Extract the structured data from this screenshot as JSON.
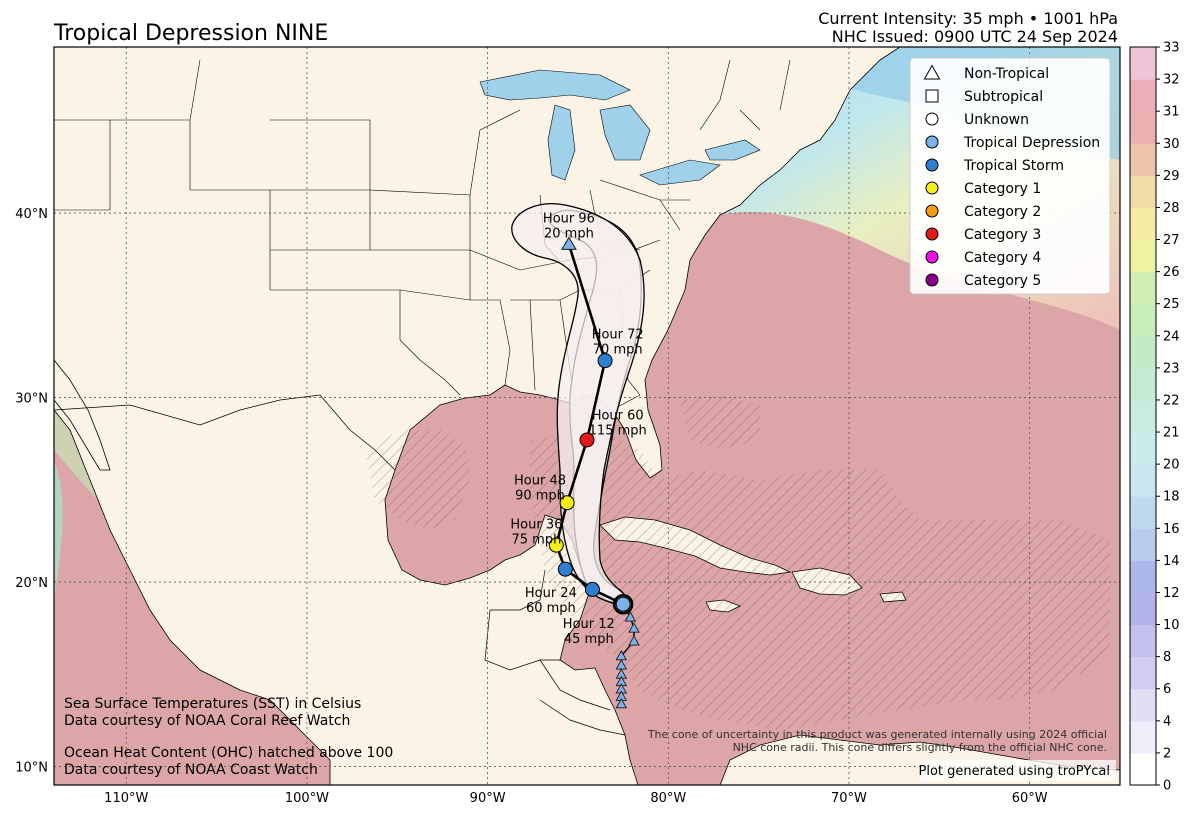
{
  "header": {
    "title": "Tropical Depression NINE",
    "intensity": "Current Intensity: 35 mph • 1001 hPa",
    "issued": "NHC Issued: 0900 UTC 24 Sep 2024"
  },
  "map": {
    "lon_range": [
      -114,
      -55
    ],
    "lat_range": [
      9,
      49
    ],
    "lon_ticks": [
      {
        "lon": -110,
        "label": "110°W"
      },
      {
        "lon": -100,
        "label": "100°W"
      },
      {
        "lon": -90,
        "label": "90°W"
      },
      {
        "lon": -80,
        "label": "80°W"
      },
      {
        "lon": -70,
        "label": "70°W"
      },
      {
        "lon": -60,
        "label": "60°W"
      }
    ],
    "lat_ticks": [
      {
        "lat": 10,
        "label": "10°N"
      },
      {
        "lat": 20,
        "label": "20°N"
      },
      {
        "lat": 30,
        "label": "30°N"
      },
      {
        "lat": 40,
        "label": "40°N"
      }
    ],
    "gridlines": true,
    "colors": {
      "land": "#faf3e6",
      "ocean_warm": "#dba3a6",
      "ocean_cool": "#9fd4ea",
      "cone": "#f6efef"
    }
  },
  "track": {
    "points": [
      {
        "lon": -82.5,
        "lat": 18.8,
        "type": "Tropical Depression",
        "hour": 0
      },
      {
        "lon": -84.2,
        "lat": 19.6,
        "type": "Tropical Storm",
        "hour": 12
      },
      {
        "lon": -85.7,
        "lat": 20.7,
        "type": "Tropical Storm",
        "hour": 24
      },
      {
        "lon": -86.2,
        "lat": 22.0,
        "type": "Category 1",
        "hour": 36
      },
      {
        "lon": -85.6,
        "lat": 24.3,
        "type": "Category 1",
        "hour": 48
      },
      {
        "lon": -84.5,
        "lat": 27.7,
        "type": "Category 3",
        "hour": 60
      },
      {
        "lon": -83.5,
        "lat": 32.0,
        "type": "Tropical Storm",
        "hour": 72
      },
      {
        "lon": -85.5,
        "lat": 38.3,
        "type": "Non-Tropical",
        "hour": 96
      }
    ],
    "history": [
      {
        "lon": -82.1,
        "lat": 18.1
      },
      {
        "lon": -81.9,
        "lat": 17.5
      },
      {
        "lon": -81.9,
        "lat": 16.8
      },
      {
        "lon": -82.6,
        "lat": 16.0
      },
      {
        "lon": -82.6,
        "lat": 15.5
      },
      {
        "lon": -82.6,
        "lat": 15.0
      },
      {
        "lon": -82.6,
        "lat": 14.6
      },
      {
        "lon": -82.6,
        "lat": 14.2
      },
      {
        "lon": -82.6,
        "lat": 13.8
      },
      {
        "lon": -82.6,
        "lat": 13.4
      }
    ]
  },
  "labels": [
    {
      "text": "Hour 96",
      "sub": "20 mph",
      "lon": -85.5,
      "lat": 39.5
    },
    {
      "text": "Hour 72",
      "sub": "70 mph",
      "lon": -82.8,
      "lat": 33.2
    },
    {
      "text": "Hour 60",
      "sub": "115 mph",
      "lon": -82.8,
      "lat": 28.8
    },
    {
      "text": "Hour 48",
      "sub": "90 mph",
      "lon": -87.1,
      "lat": 25.3
    },
    {
      "text": "Hour 36",
      "sub": "75 mph",
      "lon": -87.3,
      "lat": 22.9
    },
    {
      "text": "Hour 24",
      "sub": "60 mph",
      "lon": -86.5,
      "lat": 19.2
    },
    {
      "text": "Hour 12",
      "sub": "45 mph",
      "lon": -84.4,
      "lat": 17.5
    }
  ],
  "legend": {
    "position": "top-right",
    "items": [
      {
        "label": "Non-Tropical",
        "marker": "triangle",
        "color": "none"
      },
      {
        "label": "Subtropical",
        "marker": "square",
        "color": "none"
      },
      {
        "label": "Unknown",
        "marker": "circle",
        "color": "none"
      },
      {
        "label": "Tropical Depression",
        "marker": "circle",
        "color": "#7bb2e8"
      },
      {
        "label": "Tropical Storm",
        "marker": "circle",
        "color": "#2f7fd1"
      },
      {
        "label": "Category 1",
        "marker": "circle",
        "color": "#f5ee14"
      },
      {
        "label": "Category 2",
        "marker": "circle",
        "color": "#f39a0e"
      },
      {
        "label": "Category 3",
        "marker": "circle",
        "color": "#e31a1c"
      },
      {
        "label": "Category 4",
        "marker": "circle",
        "color": "#f010e6"
      },
      {
        "label": "Category 5",
        "marker": "circle",
        "color": "#8a008a"
      }
    ]
  },
  "footer": {
    "sst_line1": "Sea Surface Temperatures (SST) in Celsius",
    "sst_line2": "Data courtesy of NOAA Coral Reef Watch",
    "ohc_line1": "Ocean Heat Content (OHC) hatched above 100",
    "ohc_line2": "Data courtesy of NOAA Coast Watch",
    "disclaimer1": "The cone of uncertainty in this product was generated internally using 2024 official",
    "disclaimer2": "NHC cone radii. This cone differs slightly from the official NHC cone.",
    "credit": "Plot generated using troPYcal"
  },
  "colorbar": {
    "labels": [
      "0",
      "2",
      "4",
      "6",
      "8",
      "10",
      "12",
      "14",
      "16",
      "18",
      "20",
      "21",
      "22",
      "23",
      "24",
      "25",
      "26",
      "27",
      "28",
      "29",
      "30",
      "31",
      "32",
      "33"
    ],
    "colors": [
      "#ffffff",
      "#f1ecf9",
      "#e4def5",
      "#d4ccf0",
      "#c4c0ee",
      "#b4b4ea",
      "#aeb7ea",
      "#b7cbee",
      "#bfd9f1",
      "#c7e6f0",
      "#c9ecec",
      "#c7ece0",
      "#c4ebd3",
      "#c3ebc6",
      "#c8edbb",
      "#d0eeb2",
      "#eef3a0",
      "#f6eba5",
      "#f3dba8",
      "#efc6ac",
      "#ebb0b0",
      "#ecafb9",
      "#f0c4d8"
    ]
  }
}
